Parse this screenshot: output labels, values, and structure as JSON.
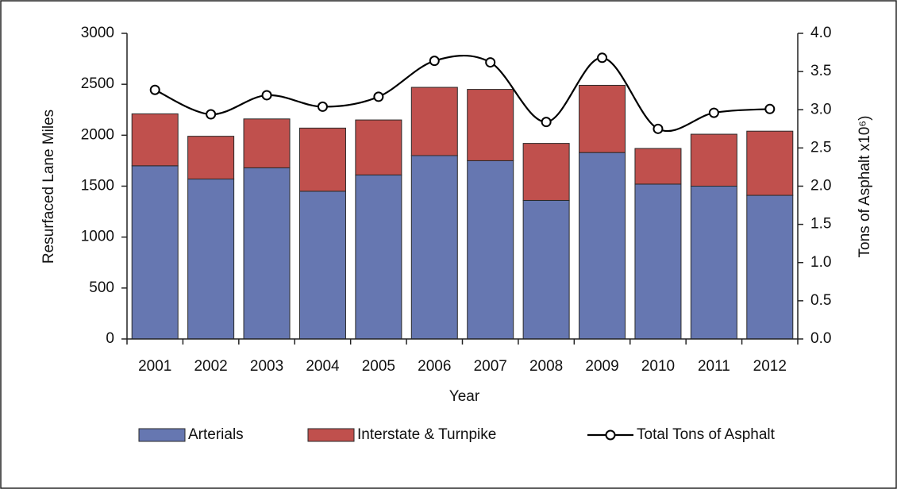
{
  "chart_data": {
    "type": "bar",
    "stacked": true,
    "x_label": "Year",
    "y_label": "Resurfaced Lane Miles",
    "y2_label": "Tons of Asphalt x10⁶)",
    "categories": [
      "2001",
      "2002",
      "2003",
      "2004",
      "2005",
      "2006",
      "2007",
      "2008",
      "2009",
      "2010",
      "2011",
      "2012"
    ],
    "series": [
      {
        "name": "Arterials",
        "color": "#6677b1",
        "values": [
          1700,
          1570,
          1680,
          1450,
          1610,
          1800,
          1750,
          1360,
          1830,
          1520,
          1500,
          1410
        ]
      },
      {
        "name": "Interstate & Turnpike",
        "color": "#c0504d",
        "values": [
          510,
          420,
          480,
          620,
          540,
          670,
          700,
          560,
          660,
          350,
          510,
          630
        ]
      },
      {
        "name": "Total Tons of Asphalt",
        "type": "line",
        "axis": "y2",
        "color": "#000000",
        "values": [
          3.26,
          2.94,
          3.19,
          3.04,
          3.17,
          3.64,
          3.62,
          2.84,
          3.68,
          2.75,
          2.96,
          3.01
        ]
      }
    ],
    "ylim": [
      0,
      3000
    ],
    "yticks": [
      0,
      500,
      1000,
      1500,
      2000,
      2500,
      3000
    ],
    "y2lim": [
      0,
      4
    ],
    "y2ticks": [
      {
        "value": 0,
        "label": "0.0"
      },
      0.5,
      {
        "value": 1,
        "label": "1.0"
      },
      1.5,
      {
        "value": 2,
        "label": "2.0"
      },
      2.5,
      {
        "value": 3,
        "label": "3.0"
      },
      3.5,
      {
        "value": 4,
        "label": "4.0"
      }
    ],
    "legend": "bottom",
    "grid": false
  }
}
